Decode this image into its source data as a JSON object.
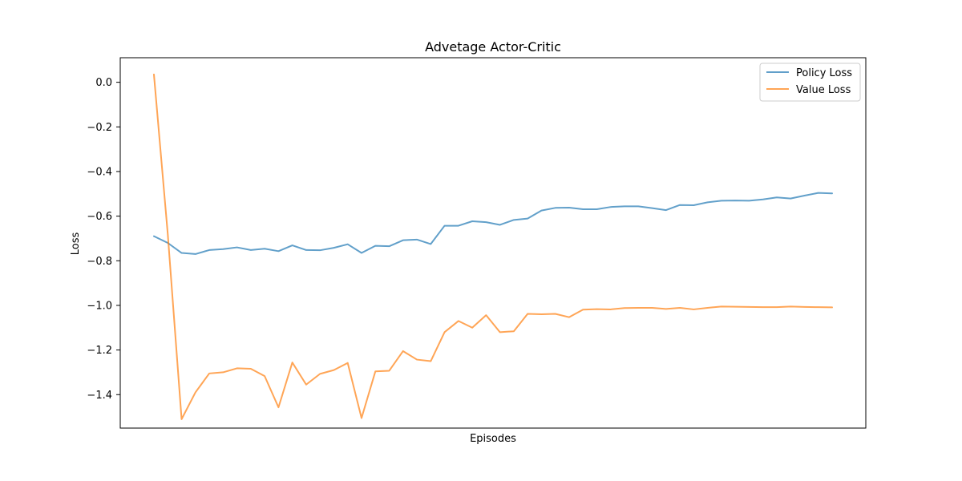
{
  "chart_data": {
    "type": "line",
    "title": "Advetage Actor-Critic",
    "xlabel": "Episodes",
    "ylabel": "Loss",
    "ylim": [
      -1.55,
      0.11
    ],
    "yticks": [
      0.0,
      -0.2,
      -0.4,
      -0.6,
      -0.8,
      -1.0,
      -1.2,
      -1.4
    ],
    "ytick_labels": [
      "0.0",
      "−0.2",
      "−0.4",
      "−0.6",
      "−0.8",
      "−1.0",
      "−1.2",
      "−1.4"
    ],
    "grid": false,
    "legend_position": "top-right",
    "x": [
      0,
      1,
      2,
      3,
      4,
      5,
      6,
      7,
      8,
      9,
      10,
      11,
      12,
      13,
      14,
      15,
      16,
      17,
      18,
      19,
      20,
      21,
      22,
      23,
      24,
      25,
      26,
      27,
      28,
      29,
      30,
      31,
      32,
      33,
      34,
      35,
      36,
      37,
      38,
      39,
      40,
      41,
      42,
      43,
      44,
      45,
      46,
      47,
      48,
      49
    ],
    "series": [
      {
        "name": "Policy Loss",
        "color": "#1f77b4",
        "values": [
          -0.69,
          -0.72,
          -0.765,
          -0.77,
          -0.752,
          -0.748,
          -0.74,
          -0.752,
          -0.746,
          -0.757,
          -0.731,
          -0.752,
          -0.753,
          -0.742,
          -0.726,
          -0.765,
          -0.733,
          -0.735,
          -0.708,
          -0.705,
          -0.725,
          -0.643,
          -0.643,
          -0.623,
          -0.627,
          -0.639,
          -0.617,
          -0.611,
          -0.575,
          -0.563,
          -0.562,
          -0.569,
          -0.569,
          -0.559,
          -0.556,
          -0.556,
          -0.564,
          -0.573,
          -0.55,
          -0.551,
          -0.538,
          -0.531,
          -0.53,
          -0.531,
          -0.525,
          -0.516,
          -0.521,
          -0.508,
          -0.496,
          -0.498
        ]
      },
      {
        "name": "Value Loss",
        "color": "#ff7f0e",
        "values": [
          0.035,
          -0.68,
          -1.51,
          -1.39,
          -1.305,
          -1.3,
          -1.282,
          -1.284,
          -1.317,
          -1.457,
          -1.256,
          -1.355,
          -1.307,
          -1.29,
          -1.258,
          -1.505,
          -1.296,
          -1.293,
          -1.205,
          -1.243,
          -1.25,
          -1.12,
          -1.07,
          -1.1,
          -1.044,
          -1.12,
          -1.116,
          -1.038,
          -1.04,
          -1.038,
          -1.053,
          -1.019,
          -1.017,
          -1.018,
          -1.012,
          -1.011,
          -1.011,
          -1.016,
          -1.011,
          -1.018,
          -1.011,
          -1.005,
          -1.006,
          -1.007,
          -1.008,
          -1.008,
          -1.005,
          -1.007,
          -1.008,
          -1.009
        ]
      }
    ]
  }
}
